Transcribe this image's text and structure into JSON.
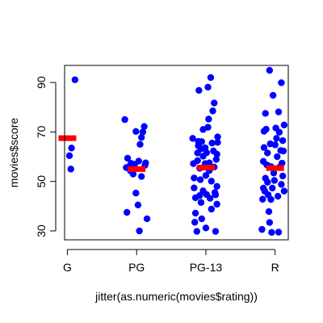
{
  "chart_data": {
    "type": "scatter",
    "title": "",
    "xlabel": "jitter(as.numeric(movies$rating))",
    "ylabel": "movies$score",
    "categories": [
      "G",
      "PG",
      "PG-13",
      "R"
    ],
    "x_ticks": [
      1,
      2,
      3,
      4
    ],
    "y_ticks": [
      30,
      50,
      70,
      90
    ],
    "xlim": [
      0.96,
      4.19
    ],
    "ylim": [
      26.4,
      96.9
    ],
    "grid": false,
    "legend": "none",
    "point_color": "#0000ff",
    "mean_color": "#ff0000",
    "means": [
      {
        "category": "G",
        "value": 67.5
      },
      {
        "category": "PG",
        "value": 55.0
      },
      {
        "category": "PG-13",
        "value": 55.6
      },
      {
        "category": "R",
        "value": 55.4
      }
    ],
    "points": [
      {
        "x": 1.03,
        "y": 60.4
      },
      {
        "x": 1.06,
        "y": 63.5
      },
      {
        "x": 1.05,
        "y": 55.0
      },
      {
        "x": 1.11,
        "y": 91.1
      },
      {
        "x": 1.83,
        "y": 75.0
      },
      {
        "x": 1.87,
        "y": 59.4
      },
      {
        "x": 1.85,
        "y": 55.6
      },
      {
        "x": 1.92,
        "y": 57.3
      },
      {
        "x": 1.91,
        "y": 54.3
      },
      {
        "x": 1.95,
        "y": 53.0
      },
      {
        "x": 1.97,
        "y": 56.8
      },
      {
        "x": 1.99,
        "y": 70.2
      },
      {
        "x": 2.03,
        "y": 58.2
      },
      {
        "x": 2.05,
        "y": 65.0
      },
      {
        "x": 2.07,
        "y": 67.8
      },
      {
        "x": 2.11,
        "y": 72.2
      },
      {
        "x": 2.13,
        "y": 57.5
      },
      {
        "x": 2.09,
        "y": 70.0
      },
      {
        "x": 1.86,
        "y": 37.5
      },
      {
        "x": 1.99,
        "y": 45.3
      },
      {
        "x": 2.02,
        "y": 40.5
      },
      {
        "x": 2.15,
        "y": 34.9
      },
      {
        "x": 2.04,
        "y": 30.0
      },
      {
        "x": 1.95,
        "y": 57.0
      },
      {
        "x": 2.07,
        "y": 52.0
      },
      {
        "x": 2.12,
        "y": 56.5
      },
      {
        "x": 1.89,
        "y": 56.0
      },
      {
        "x": 2.81,
        "y": 67.4
      },
      {
        "x": 2.82,
        "y": 57.2
      },
      {
        "x": 2.83,
        "y": 51.4
      },
      {
        "x": 2.83,
        "y": 47.4
      },
      {
        "x": 2.85,
        "y": 43.4
      },
      {
        "x": 2.85,
        "y": 37.2
      },
      {
        "x": 2.84,
        "y": 33.5
      },
      {
        "x": 2.87,
        "y": 29.8
      },
      {
        "x": 2.88,
        "y": 61.5
      },
      {
        "x": 2.88,
        "y": 58.4
      },
      {
        "x": 2.89,
        "y": 64.4
      },
      {
        "x": 2.89,
        "y": 66.2
      },
      {
        "x": 2.9,
        "y": 86.8
      },
      {
        "x": 2.91,
        "y": 44.3
      },
      {
        "x": 2.92,
        "y": 50.7
      },
      {
        "x": 2.91,
        "y": 55.3
      },
      {
        "x": 2.93,
        "y": 63.2
      },
      {
        "x": 2.94,
        "y": 66.1
      },
      {
        "x": 2.93,
        "y": 41.5
      },
      {
        "x": 2.94,
        "y": 34.9
      },
      {
        "x": 2.96,
        "y": 60.2
      },
      {
        "x": 2.96,
        "y": 46.2
      },
      {
        "x": 2.96,
        "y": 71.0
      },
      {
        "x": 2.99,
        "y": 57.2
      },
      {
        "x": 2.99,
        "y": 63.6
      },
      {
        "x": 3.0,
        "y": 52.4
      },
      {
        "x": 3.01,
        "y": 44.7
      },
      {
        "x": 3.0,
        "y": 31.2
      },
      {
        "x": 3.01,
        "y": 61.6
      },
      {
        "x": 3.03,
        "y": 71.9
      },
      {
        "x": 3.03,
        "y": 88.1
      },
      {
        "x": 3.04,
        "y": 75.2
      },
      {
        "x": 3.05,
        "y": 57.5
      },
      {
        "x": 3.05,
        "y": 54.4
      },
      {
        "x": 3.06,
        "y": 43.2
      },
      {
        "x": 3.07,
        "y": 92.0
      },
      {
        "x": 3.08,
        "y": 50.1
      },
      {
        "x": 3.08,
        "y": 38.8
      },
      {
        "x": 3.09,
        "y": 65.5
      },
      {
        "x": 3.1,
        "y": 78.5
      },
      {
        "x": 3.11,
        "y": 62.3
      },
      {
        "x": 3.12,
        "y": 81.7
      },
      {
        "x": 3.12,
        "y": 55.8
      },
      {
        "x": 3.13,
        "y": 45.5
      },
      {
        "x": 3.14,
        "y": 44.6
      },
      {
        "x": 3.14,
        "y": 29.8
      },
      {
        "x": 3.16,
        "y": 61.0
      },
      {
        "x": 3.17,
        "y": 65.8
      },
      {
        "x": 3.15,
        "y": 58.9
      },
      {
        "x": 3.17,
        "y": 68.0
      },
      {
        "x": 3.16,
        "y": 48.0
      },
      {
        "x": 3.16,
        "y": 40.8
      },
      {
        "x": 3.81,
        "y": 30.6
      },
      {
        "x": 3.82,
        "y": 42.8
      },
      {
        "x": 3.83,
        "y": 47.3
      },
      {
        "x": 3.83,
        "y": 58.1
      },
      {
        "x": 3.84,
        "y": 63.7
      },
      {
        "x": 3.84,
        "y": 70.3
      },
      {
        "x": 3.85,
        "y": 46.1
      },
      {
        "x": 3.86,
        "y": 51.3
      },
      {
        "x": 3.86,
        "y": 77.5
      },
      {
        "x": 3.87,
        "y": 71.1
      },
      {
        "x": 3.88,
        "y": 56.7
      },
      {
        "x": 3.89,
        "y": 61.5
      },
      {
        "x": 3.89,
        "y": 49.7
      },
      {
        "x": 3.9,
        "y": 44.6
      },
      {
        "x": 3.91,
        "y": 37.8
      },
      {
        "x": 3.92,
        "y": 94.9
      },
      {
        "x": 3.92,
        "y": 33.4
      },
      {
        "x": 3.93,
        "y": 65.2
      },
      {
        "x": 3.94,
        "y": 56.0
      },
      {
        "x": 3.94,
        "y": 42.7
      },
      {
        "x": 3.95,
        "y": 29.4
      },
      {
        "x": 3.96,
        "y": 47.3
      },
      {
        "x": 3.97,
        "y": 84.8
      },
      {
        "x": 3.98,
        "y": 53.4
      },
      {
        "x": 3.99,
        "y": 50.4
      },
      {
        "x": 4.0,
        "y": 64.8
      },
      {
        "x": 4.01,
        "y": 71.6
      },
      {
        "x": 4.02,
        "y": 67.4
      },
      {
        "x": 4.03,
        "y": 60.0
      },
      {
        "x": 4.04,
        "y": 44.0
      },
      {
        "x": 4.05,
        "y": 78.1
      },
      {
        "x": 4.05,
        "y": 29.5
      },
      {
        "x": 4.06,
        "y": 69.9
      },
      {
        "x": 4.07,
        "y": 55.9
      },
      {
        "x": 4.08,
        "y": 62.5
      },
      {
        "x": 4.09,
        "y": 48.8
      },
      {
        "x": 4.09,
        "y": 89.9
      },
      {
        "x": 4.1,
        "y": 57.4
      },
      {
        "x": 4.11,
        "y": 66.5
      },
      {
        "x": 4.11,
        "y": 52.2
      },
      {
        "x": 4.13,
        "y": 72.8
      },
      {
        "x": 4.13,
        "y": 46.1
      },
      {
        "x": 4.12,
        "y": 62.3
      }
    ]
  }
}
